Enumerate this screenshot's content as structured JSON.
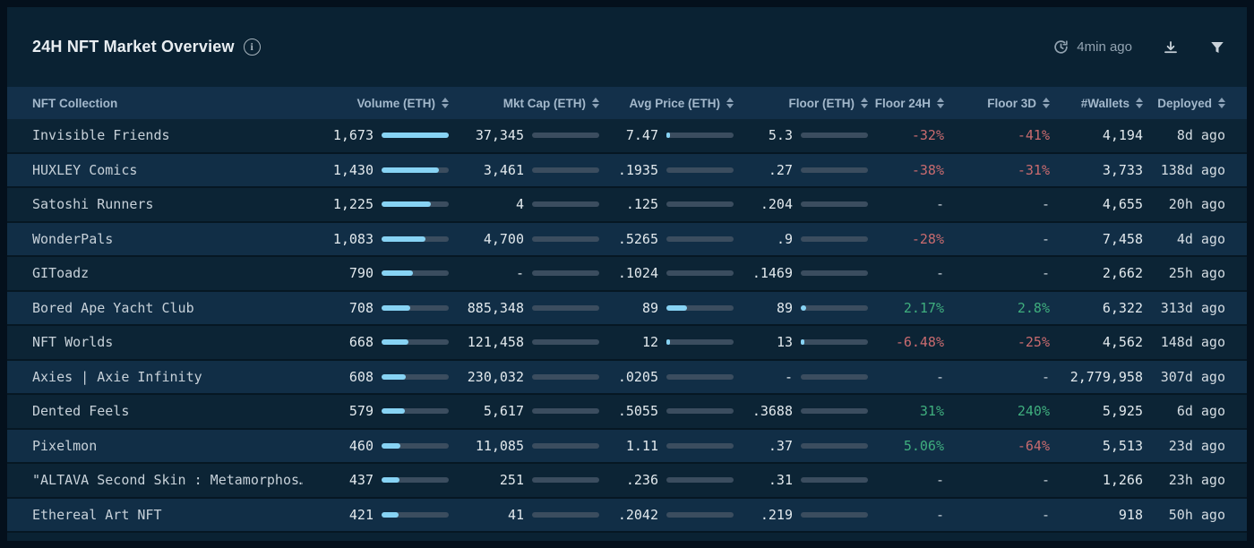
{
  "page": {
    "title": "24H NFT Market Overview",
    "updated_label": "4min ago"
  },
  "colors": {
    "accent_bar": "#87d3f4",
    "bar_track": "#3b4d5f",
    "positive": "#3fae7e",
    "negative": "#c96b6f",
    "card_bg": "#0a2233",
    "header_bg": "#13304a"
  },
  "icons": {
    "info": "info-icon",
    "refresh_clock": "refresh-history-icon",
    "download": "download-icon",
    "filter": "filter-funnel-icon",
    "sort": "sort-arrows-icon"
  },
  "table": {
    "columns": [
      {
        "label": "NFT Collection",
        "sortable": false
      },
      {
        "label": "Volume (ETH)",
        "sortable": true
      },
      {
        "label": "Mkt Cap (ETH)",
        "sortable": true
      },
      {
        "label": "Avg Price (ETH)",
        "sortable": true
      },
      {
        "label": "Floor (ETH)",
        "sortable": true
      },
      {
        "label": "Floor 24H",
        "sortable": true
      },
      {
        "label": "Floor 3D",
        "sortable": true
      },
      {
        "label": "#Wallets",
        "sortable": true
      },
      {
        "label": "Deployed",
        "sortable": true
      }
    ],
    "rows": [
      {
        "name": "Invisible Friends",
        "volume": "1,673",
        "volume_bar": 100,
        "mktcap": "37,345",
        "mktcap_bar": 0,
        "avg": "7.47",
        "avg_bar": 2.5,
        "floor": "5.3",
        "floor_bar": 0,
        "f24": "-32%",
        "f3d": "-41%",
        "wallets": "4,194",
        "deployed": "8d ago"
      },
      {
        "name": "HUXLEY Comics",
        "volume": "1,430",
        "volume_bar": 85.5,
        "mktcap": "3,461",
        "mktcap_bar": 0,
        "avg": ".1935",
        "avg_bar": 0,
        "floor": ".27",
        "floor_bar": 0,
        "f24": "-38%",
        "f3d": "-31%",
        "wallets": "3,733",
        "deployed": "138d ago"
      },
      {
        "name": "Satoshi Runners",
        "volume": "1,225",
        "volume_bar": 73.2,
        "mktcap": "4",
        "mktcap_bar": 0,
        "avg": ".125",
        "avg_bar": 0,
        "floor": ".204",
        "floor_bar": 0,
        "f24": "-",
        "f3d": "-",
        "wallets": "4,655",
        "deployed": "20h ago"
      },
      {
        "name": "WonderPals",
        "volume": "1,083",
        "volume_bar": 64.7,
        "mktcap": "4,700",
        "mktcap_bar": 0,
        "avg": ".5265",
        "avg_bar": 0,
        "floor": ".9",
        "floor_bar": 0,
        "f24": "-28%",
        "f3d": "-",
        "wallets": "7,458",
        "deployed": "4d ago"
      },
      {
        "name": "GIToadz",
        "volume": "790",
        "volume_bar": 47.2,
        "mktcap": "-",
        "mktcap_bar": 0,
        "avg": ".1024",
        "avg_bar": 0,
        "floor": ".1469",
        "floor_bar": 0,
        "f24": "-",
        "f3d": "-",
        "wallets": "2,662",
        "deployed": "25h ago"
      },
      {
        "name": "Bored Ape Yacht Club",
        "volume": "708",
        "volume_bar": 42.3,
        "mktcap": "885,348",
        "mktcap_bar": 0,
        "avg": "89",
        "avg_bar": 30,
        "floor": "89",
        "floor_bar": 8,
        "f24": "2.17%",
        "f3d": "2.8%",
        "wallets": "6,322",
        "deployed": "313d ago"
      },
      {
        "name": "NFT Worlds",
        "volume": "668",
        "volume_bar": 39.9,
        "mktcap": "121,458",
        "mktcap_bar": 0,
        "avg": "12",
        "avg_bar": 4,
        "floor": "13",
        "floor_bar": 1.5,
        "f24": "-6.48%",
        "f3d": "-25%",
        "wallets": "4,562",
        "deployed": "148d ago"
      },
      {
        "name": "Axies | Axie Infinity",
        "volume": "608",
        "volume_bar": 36.3,
        "mktcap": "230,032",
        "mktcap_bar": 0,
        "avg": ".0205",
        "avg_bar": 0,
        "floor": "-",
        "floor_bar": 0,
        "f24": "-",
        "f3d": "-",
        "wallets": "2,779,958",
        "deployed": "307d ago"
      },
      {
        "name": "Dented Feels",
        "volume": "579",
        "volume_bar": 34.6,
        "mktcap": "5,617",
        "mktcap_bar": 0,
        "avg": ".5055",
        "avg_bar": 0,
        "floor": ".3688",
        "floor_bar": 0,
        "f24": "31%",
        "f3d": "240%",
        "wallets": "5,925",
        "deployed": "6d ago"
      },
      {
        "name": "Pixelmon",
        "volume": "460",
        "volume_bar": 27.5,
        "mktcap": "11,085",
        "mktcap_bar": 0,
        "avg": "1.11",
        "avg_bar": 0,
        "floor": ".37",
        "floor_bar": 0,
        "f24": "5.06%",
        "f3d": "-64%",
        "wallets": "5,513",
        "deployed": "23d ago"
      },
      {
        "name": "\"ALTAVA Second Skin : Metamorphos…",
        "volume": "437",
        "volume_bar": 26.1,
        "mktcap": "251",
        "mktcap_bar": 0,
        "avg": ".236",
        "avg_bar": 0,
        "floor": ".31",
        "floor_bar": 0,
        "f24": "-",
        "f3d": "-",
        "wallets": "1,266",
        "deployed": "23h ago"
      },
      {
        "name": "Ethereal Art NFT",
        "volume": "421",
        "volume_bar": 25.2,
        "mktcap": "41",
        "mktcap_bar": 0,
        "avg": ".2042",
        "avg_bar": 0,
        "floor": ".219",
        "floor_bar": 0,
        "f24": "-",
        "f3d": "-",
        "wallets": "918",
        "deployed": "50h ago"
      }
    ]
  }
}
